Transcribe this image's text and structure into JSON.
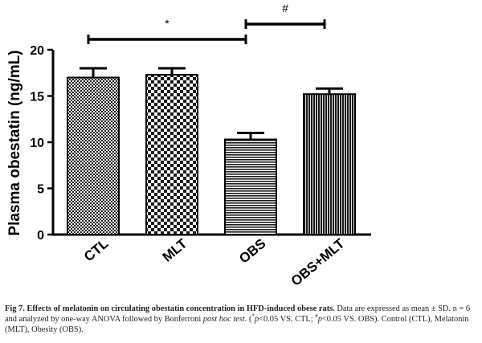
{
  "chart_data": {
    "type": "bar",
    "ylabel": "Plasma obestatin (ng/mL)",
    "xlabel": "",
    "ylim": [
      0,
      20
    ],
    "yticks": [
      0,
      5,
      10,
      15,
      20
    ],
    "categories": [
      "CTL",
      "MLT",
      "OBS",
      "OBS+MLT"
    ],
    "values": [
      17.0,
      17.3,
      10.3,
      15.2
    ],
    "errors": [
      1.0,
      0.7,
      0.7,
      0.6
    ],
    "patterns": [
      "checker-fine",
      "checker-coarse",
      "horizontal-lines",
      "vertical-lines"
    ],
    "grid": false,
    "significance": [
      {
        "from": 0,
        "to": 2,
        "label": "*"
      },
      {
        "from": 2,
        "to": 3,
        "label": "#"
      }
    ]
  },
  "caption": {
    "title": "Fig 7. Effects of melatonin on circulating obestatin concentration in HFD-induced obese rats.",
    "text1": " Data are expressed as mean ± SD. n = 6 and analyzed by one-way ANOVA followed by Bonferroni ",
    "posthoc": "post hoc test",
    "text2": ". (",
    "sym_star": "*",
    "p1": "p",
    "text3": "<0.05 VS. CTL; ",
    "sym_hash": "#",
    "p2": "p",
    "text4": "<0.05 VS. OBS). Control (CTL), Melatonin (MLT), Obesity (OBS)."
  }
}
